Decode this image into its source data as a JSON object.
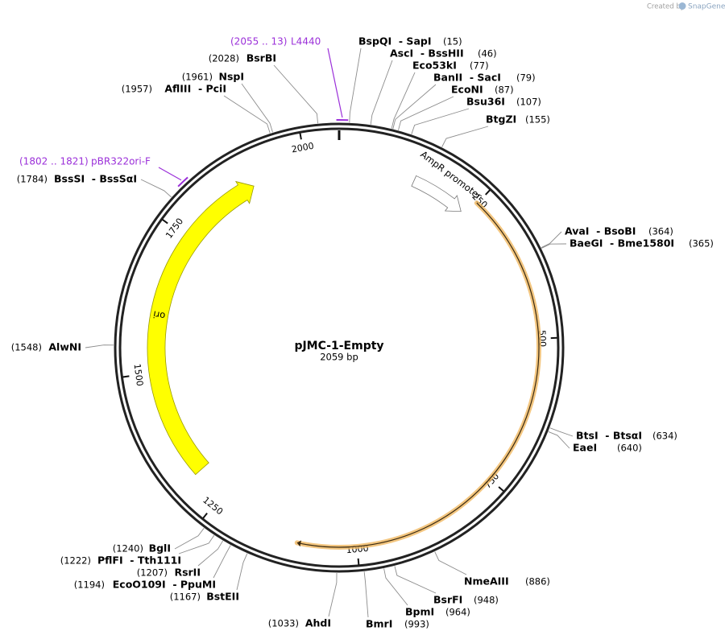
{
  "credit": "Created by",
  "brand": "SnapGene",
  "map": {
    "name": "pJMC-1-Empty",
    "length": 2059,
    "length_label": "2059 bp",
    "ticks": [
      250,
      500,
      750,
      1000,
      1250,
      1500,
      1750,
      2000
    ],
    "features": [
      {
        "name": "ori",
        "start": 1307,
        "end": 1900,
        "color": "#ffff00"
      },
      {
        "name": "AmpR promoter",
        "start": 138,
        "end": 239,
        "color": "#ffffff"
      }
    ],
    "arcs": [
      {
        "start": 249,
        "end": 1099,
        "color": "#f0b860"
      }
    ],
    "primers": [
      {
        "name": "L4440",
        "range_label": "(2055 .. 13)",
        "start": 2055,
        "end": 13
      },
      {
        "name": "pBR322ori-F",
        "range_label": "(1802 .. 1821)",
        "start": 1802,
        "end": 1821
      }
    ],
    "enzymes": [
      {
        "name": "BspQI  - SapI",
        "site": 15,
        "site_label": "(15)"
      },
      {
        "name": "AscI  - BssHII",
        "site": 46,
        "site_label": "(46)"
      },
      {
        "name": "Eco53kI",
        "site": 77,
        "site_label": "(77)"
      },
      {
        "name": "BanII  - SacI",
        "site": 79,
        "site_label": "(79)"
      },
      {
        "name": "EcoNI",
        "site": 87,
        "site_label": "(87)"
      },
      {
        "name": "Bsu36I",
        "site": 107,
        "site_label": "(107)"
      },
      {
        "name": "BtgZI",
        "site": 155,
        "site_label": "(155)"
      },
      {
        "name": "AvaI  - BsoBI",
        "site": 364,
        "site_label": "(364)"
      },
      {
        "name": "BaeGI  - Bme1580I",
        "site": 365,
        "site_label": "(365)"
      },
      {
        "name": "BtsI  - BtsαI",
        "site": 634,
        "site_label": "(634)"
      },
      {
        "name": "EaeI",
        "site": 640,
        "site_label": "(640)"
      },
      {
        "name": "NmeAIII",
        "site": 886,
        "site_label": "(886)"
      },
      {
        "name": "BsrFI",
        "site": 948,
        "site_label": "(948)"
      },
      {
        "name": "BpmI",
        "site": 964,
        "site_label": "(964)"
      },
      {
        "name": "BmrI",
        "site": 993,
        "site_label": "(993)"
      },
      {
        "name": "AhdI",
        "site": 1033,
        "site_label": "(1033)"
      },
      {
        "name": "BstEII",
        "site": 1167,
        "site_label": "(1167)"
      },
      {
        "name": "EcoO109I  - PpuMI",
        "site": 1194,
        "site_label": "(1194)"
      },
      {
        "name": "RsrII",
        "site": 1207,
        "site_label": "(1207)"
      },
      {
        "name": "PflFI  - Tth111I",
        "site": 1222,
        "site_label": "(1222)"
      },
      {
        "name": "BglI",
        "site": 1240,
        "site_label": "(1240)"
      },
      {
        "name": "AlwNI",
        "site": 1548,
        "site_label": "(1548)"
      },
      {
        "name": "BssSI  - BssSαI",
        "site": 1784,
        "site_label": "(1784)"
      },
      {
        "name": "AflIII  - PciI",
        "site": 1957,
        "site_label": "(1957)"
      },
      {
        "name": "NspI",
        "site": 1961,
        "site_label": "(1961)"
      },
      {
        "name": "BsrBI",
        "site": 2028,
        "site_label": "(2028)"
      }
    ]
  }
}
